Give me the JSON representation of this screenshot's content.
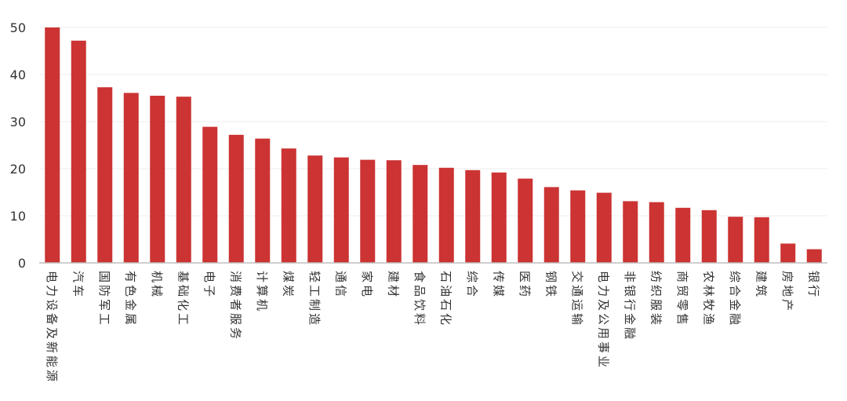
{
  "chart_data": {
    "type": "bar",
    "title": "",
    "xlabel": "",
    "ylabel": "",
    "ylim": [
      0,
      50
    ],
    "yticks": [
      0,
      10,
      20,
      30,
      40,
      50
    ],
    "grid": true,
    "bar_color": "#cc3333",
    "categories": [
      "电力设备及新能源",
      "汽车",
      "国防军工",
      "有色金属",
      "机械",
      "基础化工",
      "电子",
      "消费者服务",
      "计算机",
      "煤炭",
      "轻工制造",
      "通信",
      "家电",
      "建材",
      "食品饮料",
      "石油石化",
      "综合",
      "传媒",
      "医药",
      "钢铁",
      "交通运输",
      "电力及公用事业",
      "非银行金融",
      "纺织服装",
      "商贸零售",
      "农林牧渔",
      "综合金融",
      "建筑",
      "房地产",
      "银行"
    ],
    "values": [
      50.0,
      47.2,
      37.3,
      36.1,
      35.5,
      35.3,
      28.9,
      27.2,
      26.4,
      24.3,
      22.8,
      22.4,
      21.9,
      21.8,
      20.8,
      20.2,
      19.7,
      19.2,
      17.9,
      16.1,
      15.4,
      14.9,
      13.1,
      12.9,
      11.7,
      11.2,
      9.8,
      9.7,
      4.1,
      2.9
    ]
  }
}
